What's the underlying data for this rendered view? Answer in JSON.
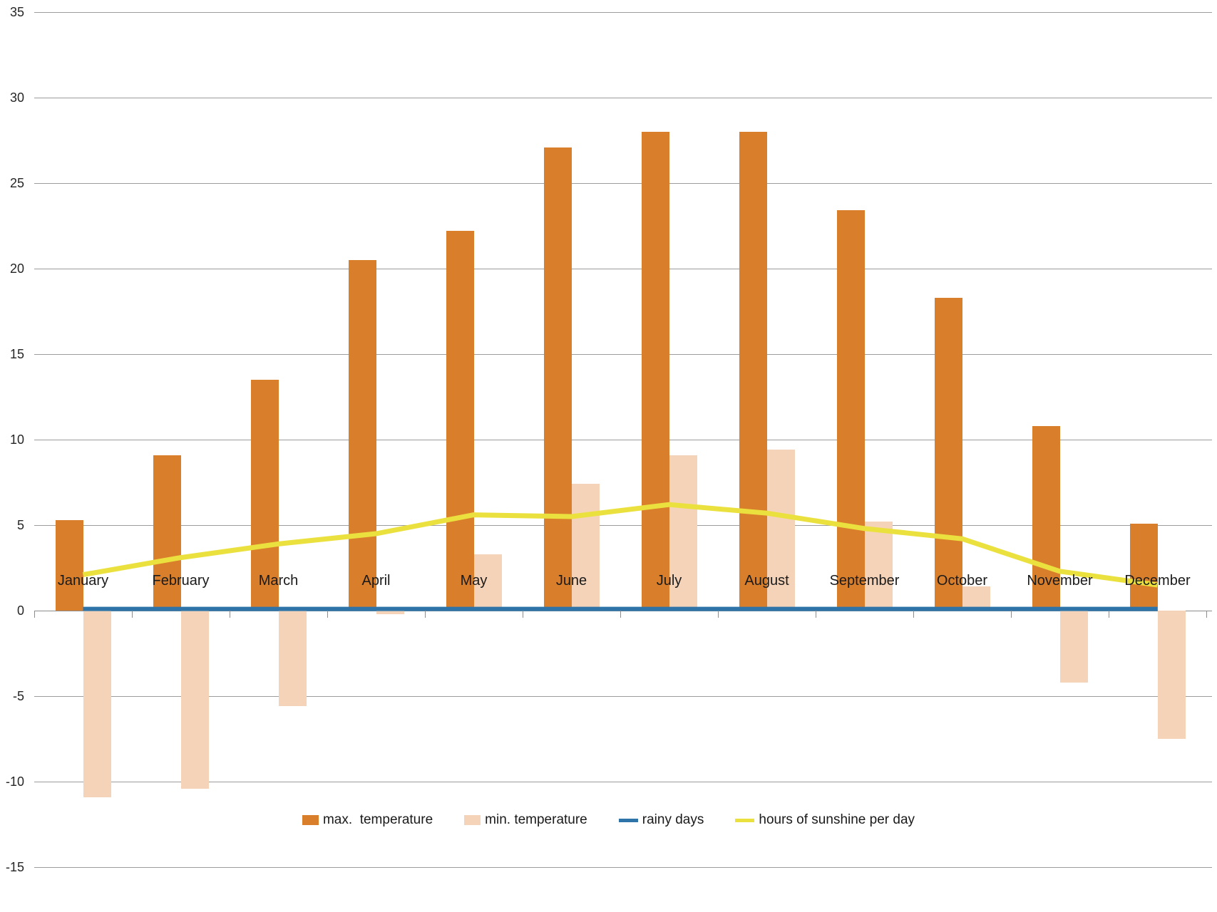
{
  "chart_data": {
    "type": "combo",
    "title": "",
    "categories": [
      "January",
      "February",
      "March",
      "April",
      "May",
      "June",
      "July",
      "August",
      "September",
      "October",
      "November",
      "December"
    ],
    "series": [
      {
        "name": "max.  temperature",
        "type": "bar",
        "color": "#D97E2B",
        "values": [
          5.3,
          9.1,
          13.5,
          20.5,
          22.2,
          27.1,
          28.0,
          28.0,
          23.4,
          18.3,
          10.8,
          5.1
        ]
      },
      {
        "name": "min. temperature",
        "type": "bar",
        "color": "#F5D3B8",
        "values": [
          -10.9,
          -10.4,
          -5.6,
          -0.2,
          3.3,
          7.4,
          9.1,
          9.4,
          5.2,
          1.4,
          -4.2,
          -7.5
        ]
      },
      {
        "name": "rainy days",
        "type": "line",
        "color": "#2E74A8",
        "values": [
          0.1,
          0.1,
          0.1,
          0.1,
          0.1,
          0.1,
          0.1,
          0.1,
          0.1,
          0.1,
          0.1,
          0.1
        ]
      },
      {
        "name": "hours of sunshine per day",
        "type": "line",
        "color": "#EBE13E",
        "values": [
          2.1,
          3.1,
          3.9,
          4.5,
          5.6,
          5.5,
          6.2,
          5.7,
          4.8,
          4.2,
          2.3,
          1.5
        ]
      }
    ],
    "ylim": [
      -15,
      35
    ],
    "ytick_step": 5,
    "y_tick_labels": [
      "35",
      "30",
      "25",
      "20",
      "15",
      "10",
      "5",
      "0",
      "-5",
      "-10",
      "-15"
    ],
    "grid": true,
    "legend_position": "bottom",
    "xlabel": "",
    "ylabel": ""
  },
  "legend": {
    "items": [
      {
        "label": "max.  temperature"
      },
      {
        "label": "min. temperature"
      },
      {
        "label": "rainy days"
      },
      {
        "label": "hours of sunshine per day"
      }
    ]
  }
}
